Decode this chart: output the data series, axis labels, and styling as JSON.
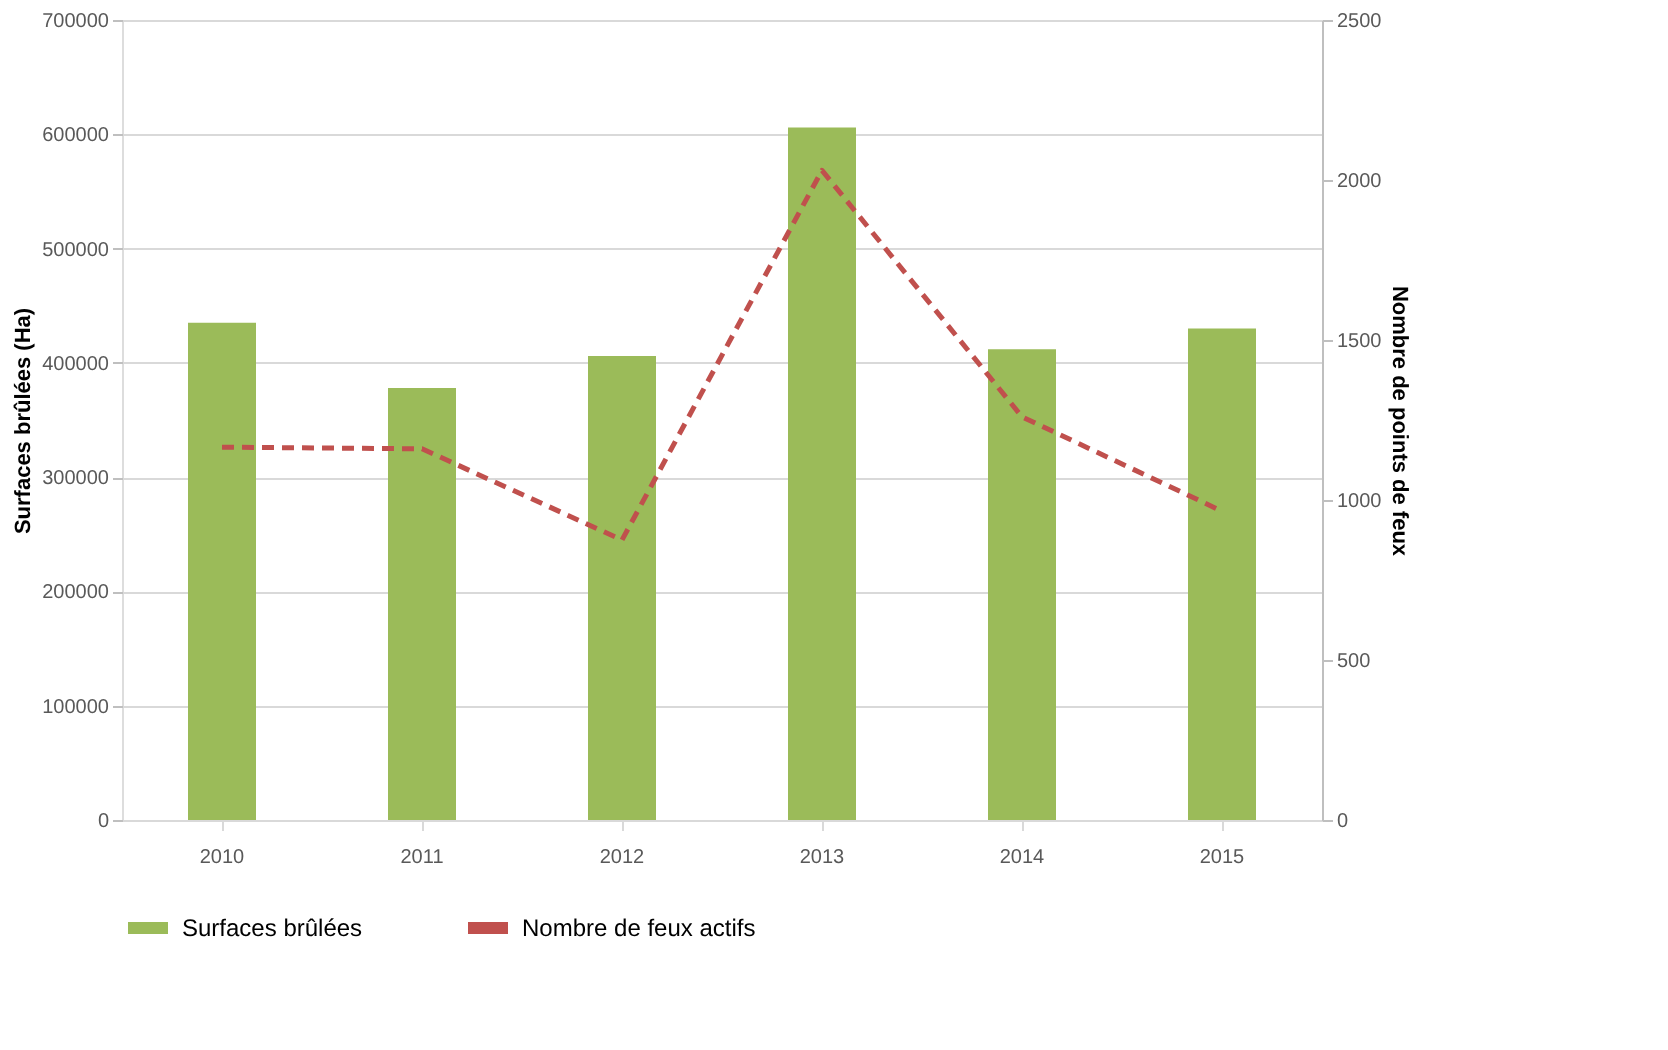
{
  "chart_data": {
    "type": "bar",
    "categories": [
      "2010",
      "2011",
      "2012",
      "2013",
      "2014",
      "2015"
    ],
    "ylabel": "Surfaces brûlées (Ha)",
    "y2label": "Nombre de points de feux",
    "ylim": [
      0,
      700000
    ],
    "yticks": [
      0,
      100000,
      200000,
      300000,
      400000,
      500000,
      600000,
      700000
    ],
    "y2lim": [
      0,
      2500
    ],
    "y2ticks": [
      0,
      500,
      1000,
      1500,
      2000,
      2500
    ],
    "series": [
      {
        "name": "Surfaces brûlées",
        "color": "#9bbb59",
        "values": [
          435000,
          378000,
          406000,
          606000,
          412000,
          430000
        ]
      },
      {
        "name": "Nombre de feux actifs",
        "type": "line",
        "axis": "y2",
        "line_style": "dashed",
        "color": "#c0504d",
        "values": [
          1165,
          1160,
          875,
          2030,
          1260,
          965
        ]
      }
    ],
    "grid": "y",
    "legend": "bottom"
  }
}
